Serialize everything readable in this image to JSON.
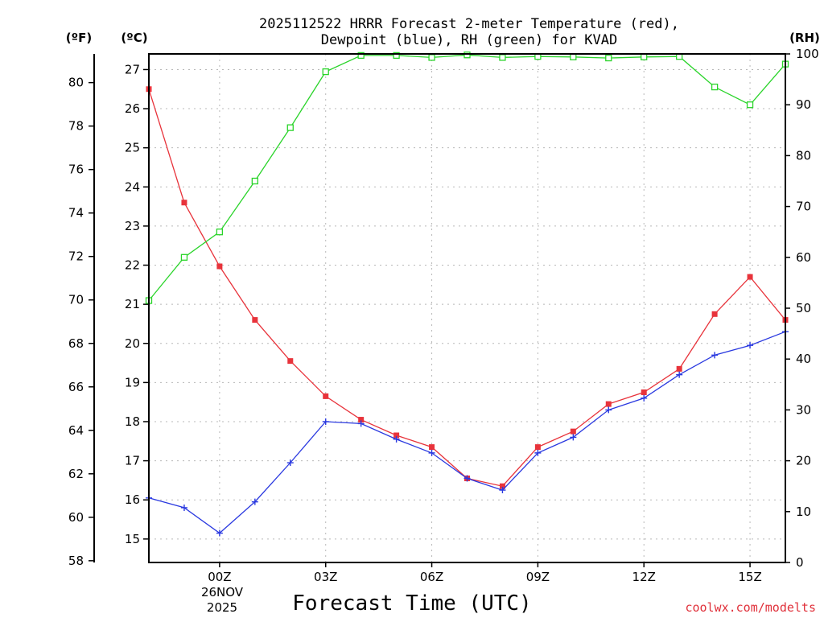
{
  "chart_data": {
    "type": "line",
    "title_lines": [
      "2025112522 HRRR Forecast 2-meter Temperature (red),",
      "Dewpoint (blue), RH (green) for KVAD"
    ],
    "xlabel": "Forecast Time (UTC)",
    "credit": "coolwx.com/modelts",
    "date_label": [
      "26NOV",
      "2025"
    ],
    "units": {
      "fahrenheit": "(ºF)",
      "celsius": "(ºC)",
      "rh": "(RH)"
    },
    "x_hours": [
      -2,
      -1,
      0,
      1,
      2,
      3,
      4,
      5,
      6,
      7,
      8,
      9,
      10,
      11,
      12,
      13,
      14,
      15,
      16
    ],
    "x_ticks": [
      {
        "hour": 0,
        "label": "00Z"
      },
      {
        "hour": 3,
        "label": "03Z"
      },
      {
        "hour": 6,
        "label": "06Z"
      },
      {
        "hour": 9,
        "label": "09Z"
      },
      {
        "hour": 12,
        "label": "12Z"
      },
      {
        "hour": 15,
        "label": "15Z"
      }
    ],
    "xlim": [
      -2,
      16
    ],
    "ylim_celsius": [
      14.4,
      27.4
    ],
    "celsius_ticks": [
      15,
      16,
      17,
      18,
      19,
      20,
      21,
      22,
      23,
      24,
      25,
      26,
      27
    ],
    "fahrenheit_ticks": [
      58,
      60,
      62,
      64,
      66,
      68,
      70,
      72,
      74,
      76,
      78,
      80
    ],
    "ylim_rh": [
      0,
      100
    ],
    "rh_ticks": [
      0,
      10,
      20,
      30,
      40,
      50,
      60,
      70,
      80,
      90,
      100
    ],
    "grid": true,
    "series": [
      {
        "name": "Temperature",
        "color": "#e8333b",
        "marker": "filled-square",
        "axis": "celsius",
        "values": [
          26.5,
          23.6,
          21.97,
          20.6,
          19.55,
          18.65,
          18.05,
          17.65,
          17.35,
          16.55,
          16.35,
          17.35,
          17.75,
          18.45,
          18.75,
          19.35,
          20.75,
          21.7,
          20.6
        ]
      },
      {
        "name": "Dewpoint",
        "color": "#2a39e0",
        "marker": "plus",
        "axis": "celsius",
        "values": [
          16.05,
          15.8,
          15.15,
          15.95,
          16.95,
          18.0,
          17.95,
          17.55,
          17.2,
          16.55,
          16.25,
          17.2,
          17.6,
          18.3,
          18.6,
          19.2,
          19.7,
          19.95,
          20.3
        ]
      },
      {
        "name": "RH",
        "color": "#2ad42a",
        "marker": "open-square",
        "axis": "rh",
        "values": [
          51.5,
          60,
          65,
          75,
          85.5,
          96.5,
          99.7,
          99.7,
          99.3,
          99.8,
          99.3,
          99.5,
          99.4,
          99.2,
          99.4,
          99.5,
          93.5,
          90,
          98
        ]
      }
    ]
  }
}
